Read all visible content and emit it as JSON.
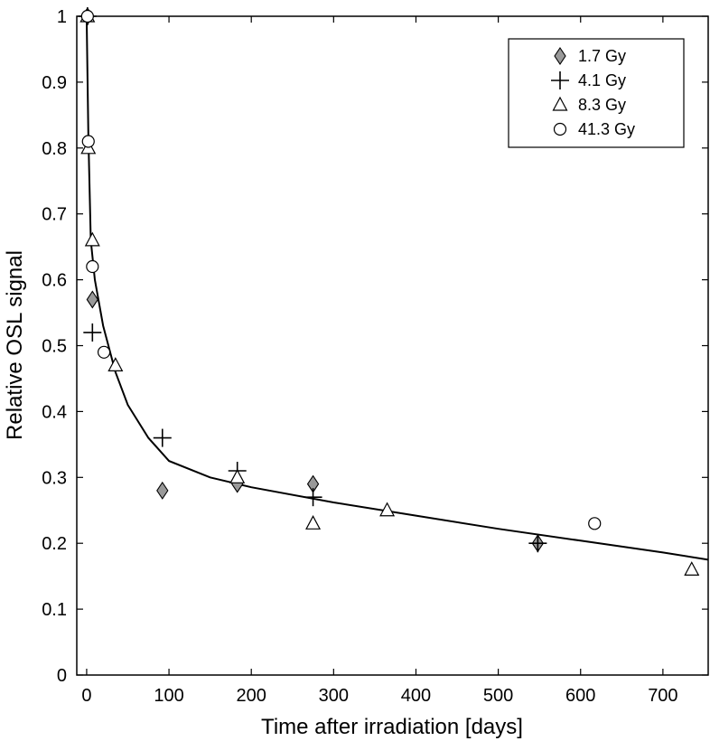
{
  "chart_data": {
    "type": "scatter",
    "title": "",
    "xlabel": "Time after irradiation [days]",
    "ylabel": "Relative OSL signal",
    "xlim": [
      -12,
      755
    ],
    "ylim": [
      0,
      1.0
    ],
    "xticks": [
      0,
      100,
      200,
      300,
      400,
      500,
      600,
      700
    ],
    "yticks": [
      0,
      0.1,
      0.2,
      0.3,
      0.4,
      0.5,
      0.6,
      0.7,
      0.8,
      0.9,
      1
    ],
    "ytick_labels": [
      "0",
      "0.1",
      "0.2",
      "0.3",
      "0.4",
      "0.5",
      "0.6",
      "0.7",
      "0.8",
      "0.9",
      "1"
    ],
    "grid": false,
    "legend_position": "top-right",
    "series": [
      {
        "name": "1.7 Gy",
        "marker": "diamond",
        "fill": "#999999",
        "x": [
          1,
          7,
          92,
          183,
          275,
          548
        ],
        "y": [
          1.0,
          0.57,
          0.28,
          0.29,
          0.29,
          0.2
        ]
      },
      {
        "name": "4.1 Gy",
        "marker": "plus",
        "fill": "none",
        "x": [
          1,
          7,
          92,
          183,
          275,
          548
        ],
        "y": [
          1.0,
          0.52,
          0.36,
          0.31,
          0.27,
          0.2
        ]
      },
      {
        "name": "8.3 Gy",
        "marker": "triangle",
        "fill": "#ffffff",
        "x": [
          1,
          2,
          7,
          35,
          183,
          275,
          365,
          735
        ],
        "y": [
          1.0,
          0.8,
          0.66,
          0.47,
          0.3,
          0.23,
          0.25,
          0.16
        ]
      },
      {
        "name": "41.3 Gy",
        "marker": "circle",
        "fill": "#ffffff",
        "x": [
          1,
          2,
          7,
          21,
          617
        ],
        "y": [
          1.0,
          0.81,
          0.62,
          0.49,
          0.23
        ]
      }
    ],
    "fit_curve": {
      "x": [
        0,
        2,
        5,
        10,
        20,
        35,
        50,
        75,
        100,
        150,
        200,
        300,
        400,
        500,
        600,
        700,
        755
      ],
      "y": [
        1.0,
        0.82,
        0.66,
        0.6,
        0.53,
        0.46,
        0.41,
        0.36,
        0.325,
        0.3,
        0.285,
        0.262,
        0.242,
        0.222,
        0.204,
        0.186,
        0.175
      ]
    }
  }
}
